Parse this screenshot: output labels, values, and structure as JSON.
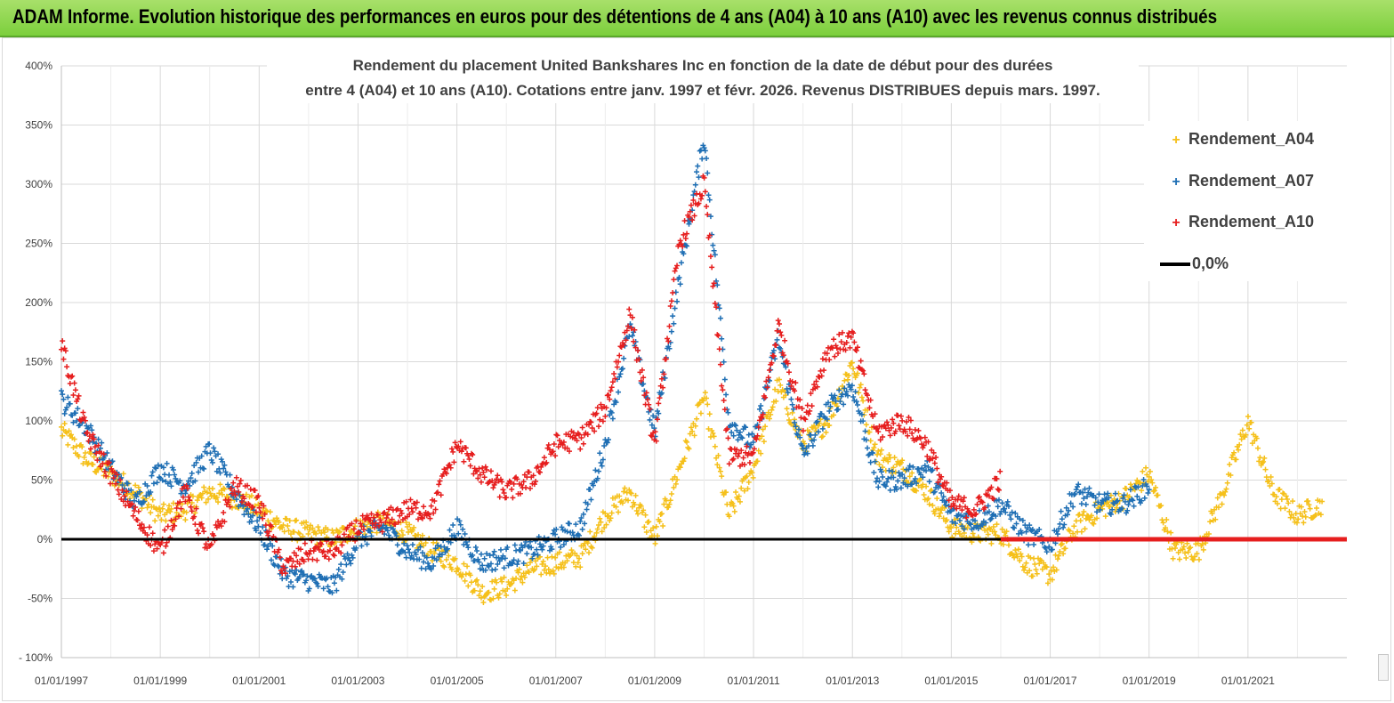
{
  "banner": {
    "title": "ADAM Informe. Evolution historique des performances en euros pour des détentions de 4 ans (A04) à 10 ans (A10) avec les revenus connus distribués"
  },
  "colors": {
    "A04": "#f5c01a",
    "A07": "#1f6fb4",
    "A10": "#e61e1e",
    "zero": "#000000",
    "grid": "#d9d9d9"
  },
  "chart_data": {
    "type": "scatter",
    "title_line1": "Rendement du placement United Bankshares Inc en fonction de la date de début pour des durées",
    "title_line2": "entre 4 (A04) et 10 ans (A10).  Cotations entre janv. 1997 et févr. 2026. Revenus  DISTRIBUES depuis mars. 1997.",
    "xlabel": "",
    "ylabel": "",
    "x_range": [
      "01/01/1997",
      "01/01/2023"
    ],
    "ylim": [
      -100,
      400
    ],
    "yticks": [
      "400%",
      "350%",
      "300%",
      "250%",
      "200%",
      "150%",
      "100%",
      "50%",
      "0%",
      "-50%",
      "- 100%"
    ],
    "xticks": [
      "01/01/1997",
      "01/01/1999",
      "01/01/2001",
      "01/01/2003",
      "01/01/2005",
      "01/01/2007",
      "01/01/2009",
      "01/01/2011",
      "01/01/2013",
      "01/01/2015",
      "01/01/2017",
      "01/01/2019",
      "01/01/2021"
    ],
    "legend_position": "top-right",
    "grid": true,
    "series": [
      {
        "name": "Rendement_A04",
        "x": [
          1997.0,
          1997.5,
          1998.0,
          1998.5,
          1999.0,
          1999.5,
          2000.0,
          2000.5,
          2001.0,
          2001.5,
          2002.0,
          2002.5,
          2003.0,
          2003.5,
          2004.0,
          2004.5,
          2005.0,
          2005.5,
          2006.0,
          2006.5,
          2007.0,
          2007.5,
          2008.0,
          2008.5,
          2009.0,
          2009.5,
          2010.0,
          2010.5,
          2011.0,
          2011.5,
          2012.0,
          2012.5,
          2013.0,
          2013.5,
          2014.0,
          2014.5,
          2015.0,
          2015.5,
          2016.0,
          2016.5,
          2017.0,
          2017.5,
          2018.0,
          2018.5,
          2019.0,
          2019.5,
          2020.0,
          2020.5,
          2021.0,
          2021.5,
          2022.0,
          2022.5
        ],
        "values": [
          92,
          68,
          55,
          40,
          20,
          25,
          40,
          35,
          25,
          10,
          5,
          0,
          10,
          15,
          5,
          -10,
          -20,
          -45,
          -40,
          -25,
          -20,
          -15,
          20,
          40,
          0,
          60,
          120,
          20,
          60,
          130,
          80,
          100,
          150,
          70,
          60,
          40,
          10,
          5,
          5,
          -20,
          -30,
          10,
          25,
          35,
          55,
          -10,
          -10,
          40,
          100,
          40,
          20,
          30
        ]
      },
      {
        "name": "Rendement_A07",
        "x": [
          1997.0,
          1997.5,
          1998.0,
          1998.5,
          1999.0,
          1999.5,
          2000.0,
          2000.5,
          2001.0,
          2001.5,
          2002.0,
          2002.5,
          2003.0,
          2003.5,
          2004.0,
          2004.5,
          2005.0,
          2005.5,
          2006.0,
          2006.5,
          2007.0,
          2007.5,
          2008.0,
          2008.5,
          2009.0,
          2009.5,
          2010.0,
          2010.5,
          2011.0,
          2011.5,
          2012.0,
          2012.5,
          2013.0,
          2013.5,
          2014.0,
          2014.5,
          2015.0,
          2015.5,
          2016.0,
          2016.5,
          2017.0,
          2017.5,
          2018.0,
          2018.5,
          2019.0
        ],
        "values": [
          118,
          95,
          60,
          30,
          60,
          45,
          75,
          40,
          10,
          -30,
          -35,
          -40,
          0,
          10,
          -10,
          -20,
          10,
          -20,
          -15,
          -10,
          0,
          10,
          80,
          180,
          90,
          220,
          340,
          100,
          80,
          170,
          70,
          110,
          130,
          50,
          50,
          60,
          20,
          15,
          30,
          5,
          -5,
          40,
          30,
          30,
          45
        ]
      },
      {
        "name": "Rendement_A10",
        "x": [
          1997.0,
          1997.5,
          1998.0,
          1998.5,
          1999.0,
          1999.5,
          2000.0,
          2000.5,
          2001.0,
          2001.5,
          2002.0,
          2002.5,
          2003.0,
          2003.5,
          2004.0,
          2004.5,
          2005.0,
          2005.5,
          2006.0,
          2006.5,
          2007.0,
          2007.5,
          2008.0,
          2008.5,
          2009.0,
          2009.5,
          2010.0,
          2010.5,
          2011.0,
          2011.5,
          2012.0,
          2012.5,
          2013.0,
          2013.5,
          2014.0,
          2014.5,
          2015.0,
          2015.5,
          2016.0
        ],
        "values": [
          165,
          90,
          55,
          20,
          -10,
          40,
          -10,
          45,
          30,
          -25,
          -10,
          -10,
          10,
          15,
          25,
          25,
          80,
          55,
          40,
          50,
          80,
          85,
          110,
          190,
          80,
          250,
          300,
          70,
          70,
          180,
          100,
          160,
          170,
          90,
          100,
          80,
          30,
          25,
          50
        ]
      }
    ],
    "zero_line": {
      "name": "0,0%",
      "value": 0
    },
    "flat_zero_from": 2016.0
  }
}
